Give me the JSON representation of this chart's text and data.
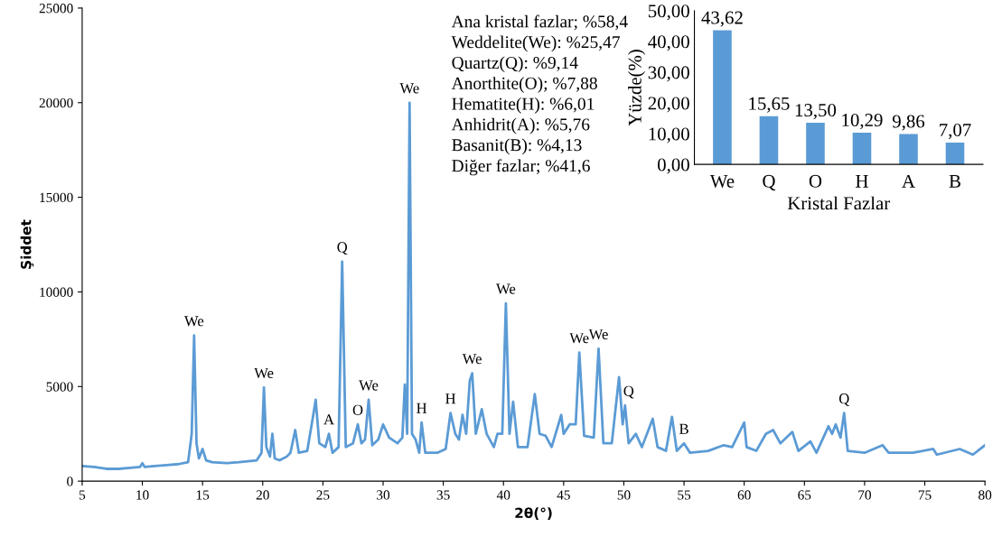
{
  "chart_data": [
    {
      "type": "line",
      "xlabel": "2θ(°)",
      "ylabel": "Şiddet",
      "xlim": [
        5,
        80
      ],
      "ylim": [
        0,
        25000
      ],
      "xticks": [
        5,
        10,
        15,
        20,
        25,
        30,
        35,
        40,
        45,
        50,
        55,
        60,
        65,
        70,
        75,
        80
      ],
      "yticks": [
        0,
        5000,
        10000,
        15000,
        20000,
        25000
      ],
      "grid": false,
      "legend": false,
      "marker": "none",
      "line_style": "solid",
      "series": [
        {
          "color": "#5b9bd5",
          "x": [
            5,
            6,
            7,
            8,
            9,
            9.8,
            10,
            10.2,
            11,
            12,
            13,
            13.8,
            14.1,
            14.3,
            14.5,
            14.7,
            15,
            15.3,
            15.8,
            17,
            18,
            19.5,
            19.9,
            20.1,
            20.3,
            20.6,
            20.8,
            21,
            21.4,
            22,
            22.3,
            22.7,
            23,
            23.7,
            24.2,
            24.4,
            24.7,
            25.2,
            25.5,
            25.8,
            26.3,
            26.6,
            26.9,
            27.5,
            27.9,
            28.2,
            28.5,
            28.8,
            29.1,
            29.6,
            30,
            30.5,
            31.2,
            31.6,
            31.8,
            32,
            32.2,
            32.4,
            32.7,
            33,
            33.2,
            33.5,
            34.5,
            35.2,
            35.6,
            36,
            36.3,
            36.6,
            36.9,
            37.2,
            37.4,
            37.7,
            38.2,
            38.6,
            39.2,
            39.5,
            39.9,
            40.2,
            40.5,
            40.8,
            41.2,
            42,
            42.6,
            43,
            43.5,
            44,
            44.8,
            45,
            45.5,
            46,
            46.3,
            46.7,
            47.5,
            47.9,
            48.3,
            49,
            49.6,
            49.9,
            50.1,
            50.4,
            51,
            51.5,
            52.4,
            52.8,
            53.5,
            54,
            54.4,
            55,
            55.5,
            57,
            58.3,
            59,
            60,
            60.2,
            61,
            61.8,
            62.4,
            63,
            64,
            64.5,
            65.5,
            66,
            67,
            67.3,
            67.6,
            68,
            68.3,
            68.6,
            70,
            71.5,
            72,
            74,
            75.7,
            76,
            77.9,
            79,
            80
          ],
          "values": [
            800,
            750,
            650,
            650,
            700,
            750,
            950,
            750,
            800,
            850,
            900,
            1000,
            2500,
            7700,
            2000,
            1200,
            1700,
            1100,
            1000,
            950,
            1000,
            1100,
            1500,
            4950,
            1800,
            1300,
            2500,
            1200,
            1100,
            1300,
            1500,
            2700,
            1500,
            1600,
            3500,
            4300,
            2000,
            1800,
            2500,
            1500,
            1800,
            11600,
            1800,
            2000,
            3000,
            2000,
            2200,
            4300,
            1900,
            2200,
            3000,
            2300,
            2000,
            2300,
            5100,
            2500,
            20000,
            2500,
            2200,
            1500,
            3100,
            1500,
            1500,
            1700,
            3600,
            2500,
            2200,
            3500,
            2500,
            5300,
            5700,
            2500,
            3800,
            2500,
            1800,
            2500,
            2500,
            9400,
            2500,
            4200,
            1800,
            1800,
            4600,
            2500,
            2400,
            1800,
            3500,
            2500,
            3000,
            3000,
            6800,
            2400,
            2300,
            7000,
            2000,
            2000,
            5500,
            3000,
            4000,
            2000,
            2500,
            1800,
            3300,
            1800,
            1600,
            3400,
            1600,
            2000,
            1500,
            1600,
            1900,
            1800,
            3100,
            1800,
            1600,
            2500,
            2700,
            2000,
            2600,
            1600,
            2100,
            1500,
            2900,
            2500,
            3000,
            2300,
            3600,
            1600,
            1500,
            1900,
            1500,
            1500,
            1700,
            1400,
            1700,
            1400,
            1900
          ]
        }
      ],
      "annotations": [
        "Ana kristal fazlar; %58,4",
        "Weddelite(We): %25,47",
        "Quartz(Q): %9,14",
        "Anorthite(O); %7,88",
        "Hematite(H): %6,01",
        "Anhidrit(A): %5,76",
        "Basanit(B): %4,13",
        "Diğer fazlar; %41,6",
        {
          "text": "We",
          "x": 14.3,
          "y": 7700
        },
        {
          "text": "We",
          "x": 20.1,
          "y": 4950
        },
        {
          "text": "A",
          "x": 25.5,
          "y": 2500
        },
        {
          "text": "Q",
          "x": 26.6,
          "y": 11600
        },
        {
          "text": "O",
          "x": 27.9,
          "y": 3000
        },
        {
          "text": "We",
          "x": 28.8,
          "y": 4300
        },
        {
          "text": "We",
          "x": 32.2,
          "y": 20000
        },
        {
          "text": "H",
          "x": 33.2,
          "y": 3100
        },
        {
          "text": "H",
          "x": 35.6,
          "y": 3600
        },
        {
          "text": "We",
          "x": 37.4,
          "y": 5700
        },
        {
          "text": "We",
          "x": 40.2,
          "y": 9400
        },
        {
          "text": "We",
          "x": 46.3,
          "y": 6800
        },
        {
          "text": "We",
          "x": 47.9,
          "y": 7000
        },
        {
          "text": "Q",
          "x": 50.4,
          "y": 4000
        },
        {
          "text": "B",
          "x": 55,
          "y": 2000
        },
        {
          "text": "Q",
          "x": 68.3,
          "y": 3600
        }
      ]
    },
    {
      "type": "bar",
      "xlabel": "Kristal Fazlar",
      "ylabel": "Yüzde(%)",
      "categories": [
        "We",
        "Q",
        "O",
        "H",
        "A",
        "B"
      ],
      "values": [
        43.62,
        15.65,
        13.5,
        10.29,
        9.86,
        7.07
      ],
      "value_labels": [
        "43,62",
        "15,65",
        "13,50",
        "10,29",
        "9,86",
        "7,07"
      ],
      "color": "#5b9bd5",
      "ylim": [
        0,
        50
      ],
      "yticks": [
        {
          "value": 0,
          "label": "0,00"
        },
        {
          "value": 10,
          "label": "10,00"
        },
        {
          "value": 20,
          "label": "20,00"
        },
        {
          "value": 30,
          "label": "30,00"
        },
        {
          "value": 40,
          "label": "40,00"
        },
        {
          "value": 50,
          "label": "50,00"
        }
      ],
      "grid": false,
      "legend": false
    }
  ]
}
